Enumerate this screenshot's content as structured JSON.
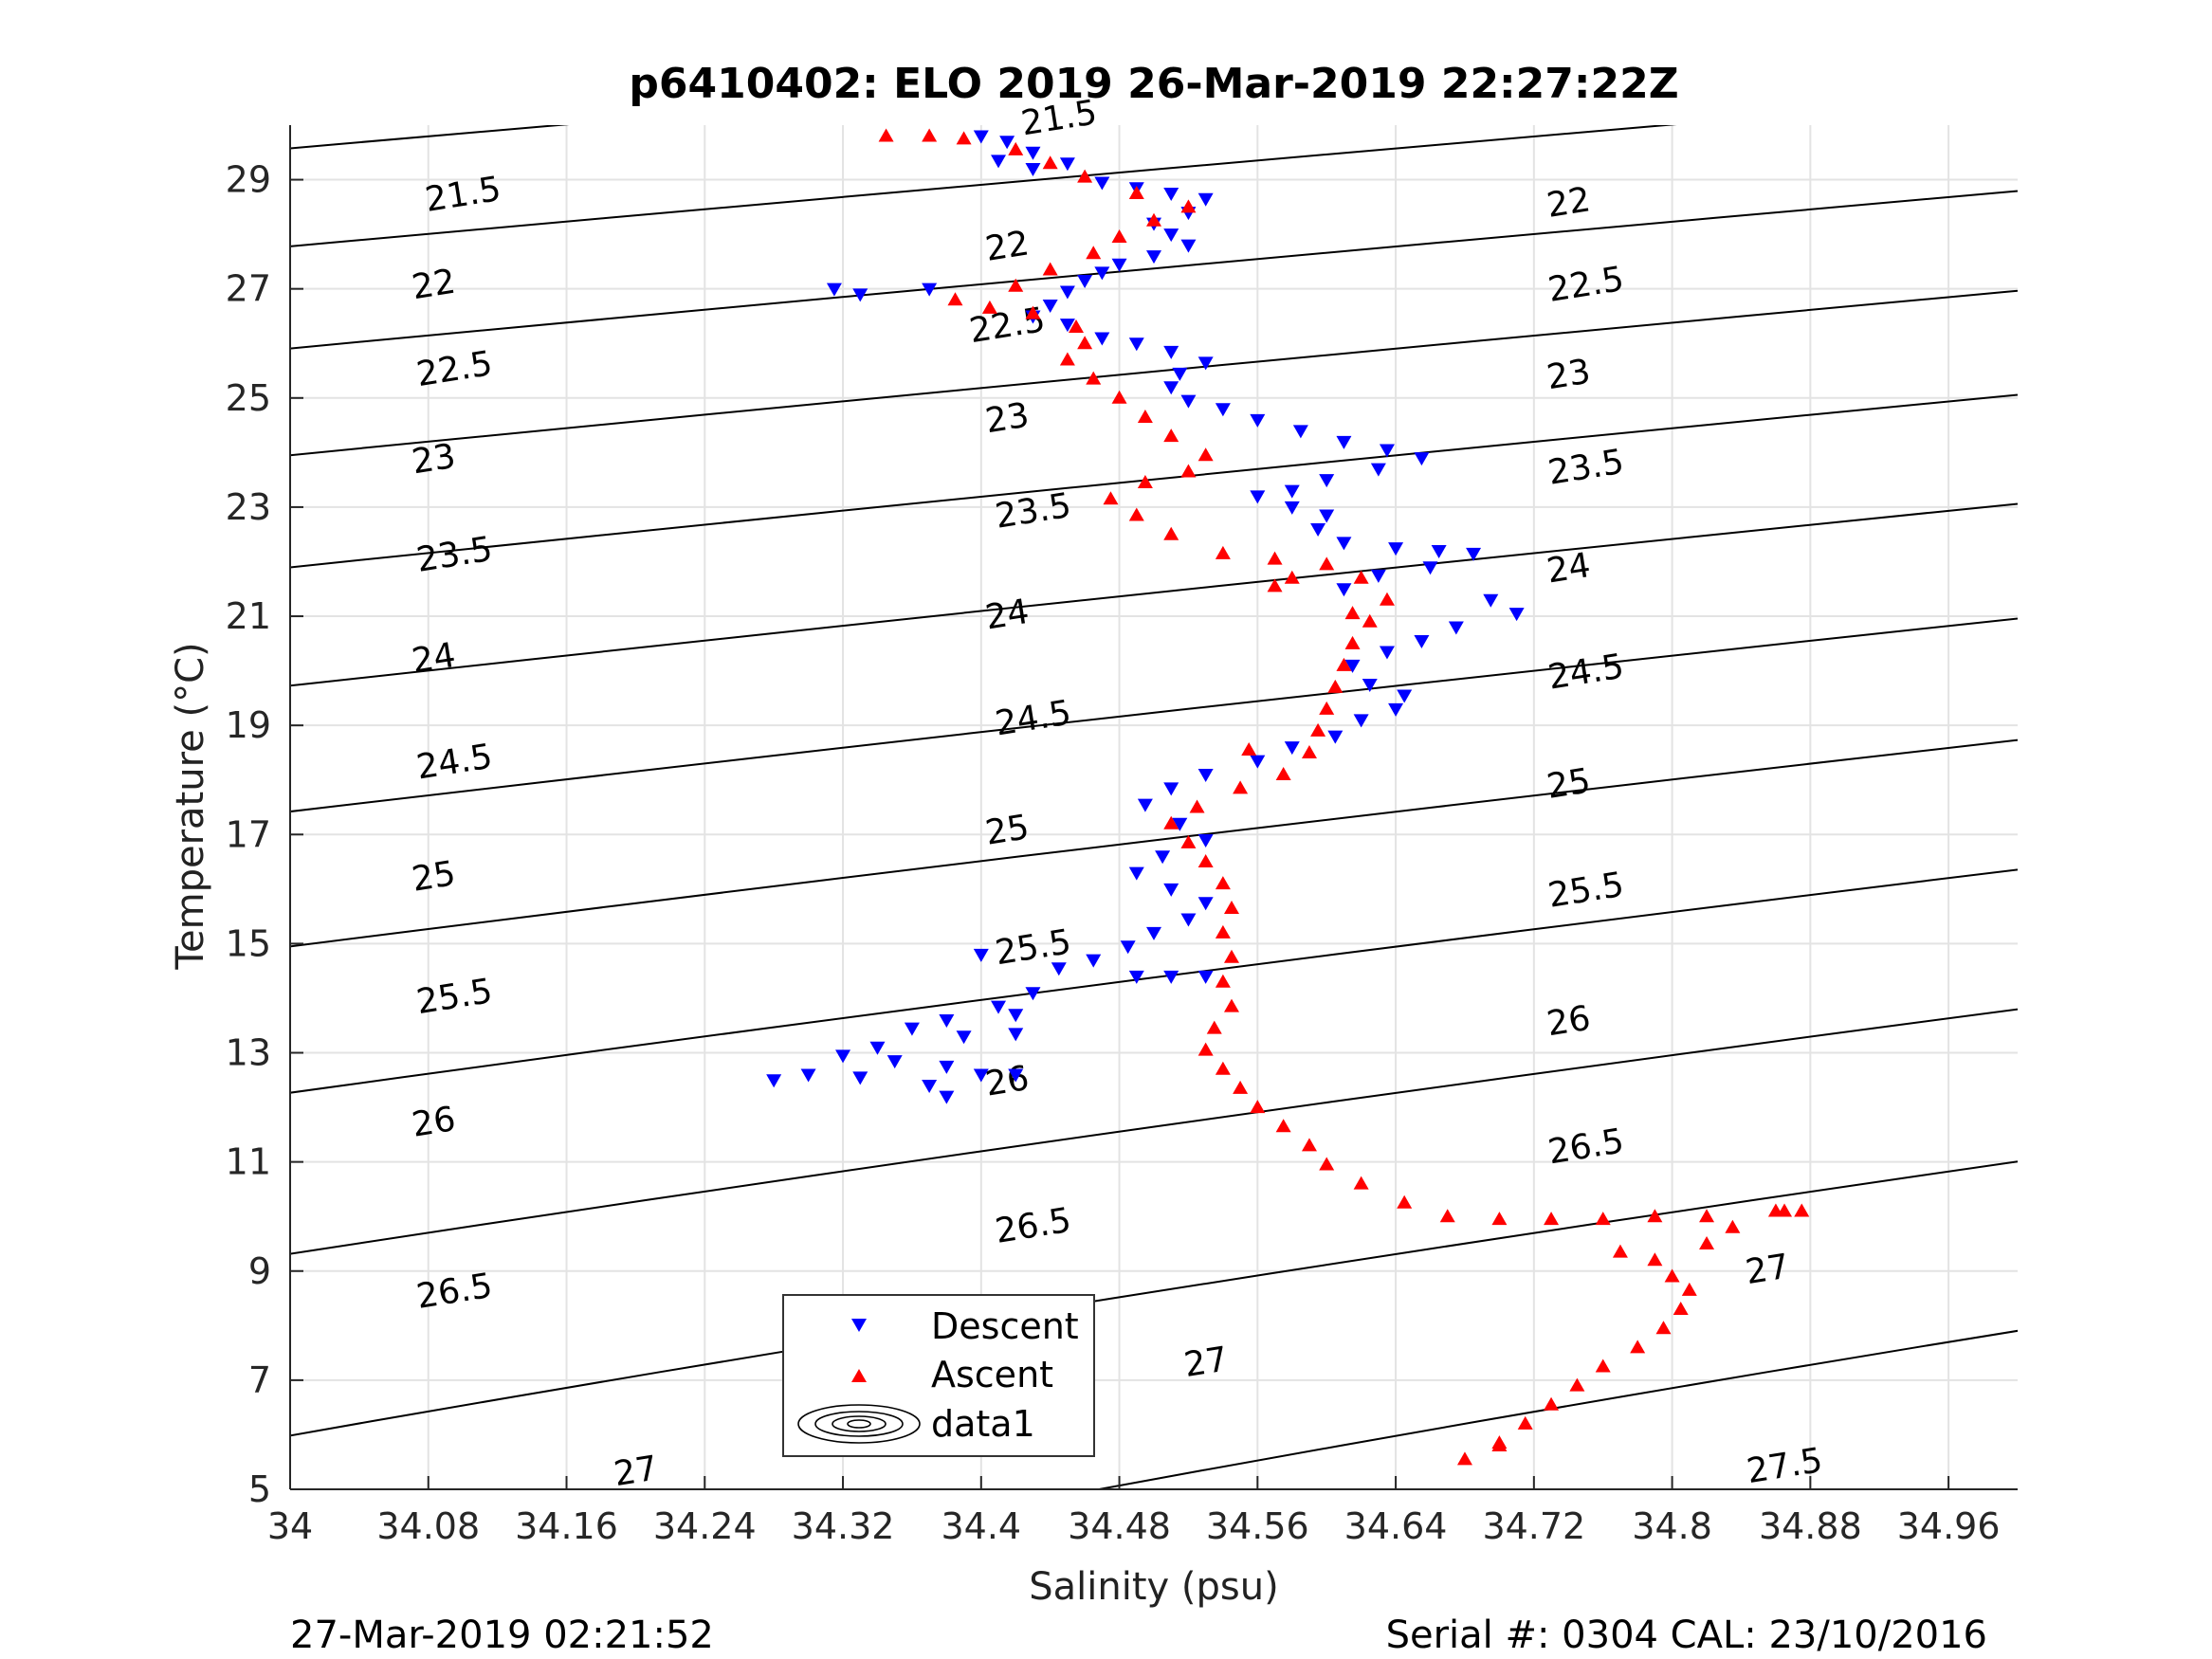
{
  "footer": {
    "timestamp": "27-Mar-2019 02:21:52",
    "serial_cal": "Serial #: 0304  CAL: 23/10/2016"
  },
  "chart_data": {
    "type": "scatter",
    "title": "p6410402: ELO 2019 26-Mar-2019 22:27:22Z",
    "xlabel": "Salinity (psu)",
    "ylabel": "Temperature (°C)",
    "xlim": [
      34.0,
      35.0
    ],
    "ylim": [
      5,
      30
    ],
    "xticks": [
      "34",
      "34.08",
      "34.16",
      "34.24",
      "34.32",
      "34.4",
      "34.48",
      "34.56",
      "34.64",
      "34.72",
      "34.8",
      "34.88",
      "34.96"
    ],
    "yticks": [
      "5",
      "7",
      "9",
      "11",
      "13",
      "15",
      "17",
      "19",
      "21",
      "23",
      "25",
      "27",
      "29"
    ],
    "grid": true,
    "legend": {
      "placement": "bottom-center",
      "entries": [
        "Descent",
        "Ascent",
        "data1"
      ]
    },
    "colors": {
      "descent": "#0000ff",
      "ascent": "#ff0000",
      "contour": "#000000"
    },
    "density_contours": {
      "levels": [
        21.5,
        22,
        22.5,
        23,
        23.5,
        24,
        24.5,
        25,
        25.5,
        26,
        26.5,
        27,
        27.5
      ],
      "labels": [
        {
          "text": "21.5",
          "x": 34.1,
          "y": 28.75
        },
        {
          "text": "21.5",
          "x": 34.445,
          "y": 30.15
        },
        {
          "text": "22",
          "x": 34.083,
          "y": 27.1
        },
        {
          "text": "22",
          "x": 34.415,
          "y": 27.8
        },
        {
          "text": "22",
          "x": 34.74,
          "y": 28.6
        },
        {
          "text": "22.5",
          "x": 34.095,
          "y": 25.55
        },
        {
          "text": "22.5",
          "x": 34.415,
          "y": 26.35
        },
        {
          "text": "22.5",
          "x": 34.75,
          "y": 27.1
        },
        {
          "text": "23",
          "x": 34.083,
          "y": 23.9
        },
        {
          "text": "23",
          "x": 34.415,
          "y": 24.65
        },
        {
          "text": "23",
          "x": 34.74,
          "y": 25.45
        },
        {
          "text": "23.5",
          "x": 34.095,
          "y": 22.15
        },
        {
          "text": "23.5",
          "x": 34.43,
          "y": 22.95
        },
        {
          "text": "23.5",
          "x": 34.75,
          "y": 23.75
        },
        {
          "text": "24",
          "x": 34.083,
          "y": 20.25
        },
        {
          "text": "24",
          "x": 34.415,
          "y": 21.05
        },
        {
          "text": "24",
          "x": 34.74,
          "y": 21.9
        },
        {
          "text": "24.5",
          "x": 34.095,
          "y": 18.35
        },
        {
          "text": "24.5",
          "x": 34.43,
          "y": 19.15
        },
        {
          "text": "24.5",
          "x": 34.75,
          "y": 20.0
        },
        {
          "text": "25",
          "x": 34.083,
          "y": 16.25
        },
        {
          "text": "25",
          "x": 34.415,
          "y": 17.1
        },
        {
          "text": "25",
          "x": 34.74,
          "y": 17.95
        },
        {
          "text": "25.5",
          "x": 34.095,
          "y": 14.05
        },
        {
          "text": "25.5",
          "x": 34.43,
          "y": 14.95
        },
        {
          "text": "25.5",
          "x": 34.75,
          "y": 16.0
        },
        {
          "text": "26",
          "x": 34.083,
          "y": 11.75
        },
        {
          "text": "26",
          "x": 34.415,
          "y": 12.5
        },
        {
          "text": "26",
          "x": 34.74,
          "y": 13.6
        },
        {
          "text": "26.5",
          "x": 34.095,
          "y": 8.65
        },
        {
          "text": "26.5",
          "x": 34.43,
          "y": 9.85
        },
        {
          "text": "26.5",
          "x": 34.75,
          "y": 11.3
        },
        {
          "text": "27",
          "x": 34.2,
          "y": 5.35
        },
        {
          "text": "27",
          "x": 34.53,
          "y": 7.35
        },
        {
          "text": "27",
          "x": 34.855,
          "y": 9.05
        },
        {
          "text": "27.5",
          "x": 34.865,
          "y": 5.45
        }
      ]
    },
    "series": [
      {
        "name": "Descent",
        "marker": "triangle-down",
        "points": [
          [
            34.4,
            29.8
          ],
          [
            34.415,
            29.7
          ],
          [
            34.43,
            29.5
          ],
          [
            34.41,
            29.35
          ],
          [
            34.43,
            29.2
          ],
          [
            34.45,
            29.3
          ],
          [
            34.47,
            28.95
          ],
          [
            34.49,
            28.85
          ],
          [
            34.51,
            28.75
          ],
          [
            34.53,
            28.65
          ],
          [
            34.52,
            28.4
          ],
          [
            34.5,
            28.2
          ],
          [
            34.51,
            28.0
          ],
          [
            34.52,
            27.8
          ],
          [
            34.5,
            27.6
          ],
          [
            34.48,
            27.45
          ],
          [
            34.47,
            27.3
          ],
          [
            34.46,
            27.15
          ],
          [
            34.45,
            26.95
          ],
          [
            34.44,
            26.7
          ],
          [
            34.43,
            26.5
          ],
          [
            34.45,
            26.35
          ],
          [
            34.47,
            26.1
          ],
          [
            34.49,
            26.0
          ],
          [
            34.51,
            25.85
          ],
          [
            34.53,
            25.65
          ],
          [
            34.515,
            25.45
          ],
          [
            34.51,
            25.2
          ],
          [
            34.52,
            24.95
          ],
          [
            34.54,
            24.8
          ],
          [
            34.56,
            24.6
          ],
          [
            34.585,
            24.4
          ],
          [
            34.61,
            24.2
          ],
          [
            34.635,
            24.05
          ],
          [
            34.655,
            23.9
          ],
          [
            34.63,
            23.7
          ],
          [
            34.6,
            23.5
          ],
          [
            34.58,
            23.3
          ],
          [
            34.56,
            23.2
          ],
          [
            34.58,
            23.0
          ],
          [
            34.6,
            22.85
          ],
          [
            34.595,
            22.6
          ],
          [
            34.61,
            22.35
          ],
          [
            34.64,
            22.25
          ],
          [
            34.665,
            22.2
          ],
          [
            34.685,
            22.15
          ],
          [
            34.66,
            21.9
          ],
          [
            34.63,
            21.75
          ],
          [
            34.61,
            21.5
          ],
          [
            34.695,
            21.3
          ],
          [
            34.71,
            21.05
          ],
          [
            34.675,
            20.8
          ],
          [
            34.655,
            20.55
          ],
          [
            34.635,
            20.35
          ],
          [
            34.615,
            20.1
          ],
          [
            34.625,
            19.75
          ],
          [
            34.645,
            19.55
          ],
          [
            34.64,
            19.3
          ],
          [
            34.62,
            19.1
          ],
          [
            34.605,
            18.8
          ],
          [
            34.58,
            18.6
          ],
          [
            34.56,
            18.35
          ],
          [
            34.53,
            18.1
          ],
          [
            34.51,
            17.85
          ],
          [
            34.495,
            17.55
          ],
          [
            34.515,
            17.2
          ],
          [
            34.53,
            16.9
          ],
          [
            34.505,
            16.6
          ],
          [
            34.49,
            16.3
          ],
          [
            34.51,
            16.0
          ],
          [
            34.53,
            15.75
          ],
          [
            34.52,
            15.45
          ],
          [
            34.5,
            15.2
          ],
          [
            34.485,
            14.95
          ],
          [
            34.465,
            14.7
          ],
          [
            34.445,
            14.55
          ],
          [
            34.49,
            14.4
          ],
          [
            34.51,
            14.4
          ],
          [
            34.53,
            14.4
          ],
          [
            34.43,
            14.1
          ],
          [
            34.41,
            13.85
          ],
          [
            34.38,
            13.6
          ],
          [
            34.36,
            13.45
          ],
          [
            34.39,
            13.3
          ],
          [
            34.42,
            13.35
          ],
          [
            34.34,
            13.1
          ],
          [
            34.32,
            12.95
          ],
          [
            34.35,
            12.85
          ],
          [
            34.38,
            12.75
          ],
          [
            34.4,
            12.6
          ],
          [
            34.42,
            12.6
          ],
          [
            34.3,
            12.6
          ],
          [
            34.28,
            12.5
          ],
          [
            34.33,
            12.55
          ],
          [
            34.37,
            12.4
          ],
          [
            34.38,
            12.2
          ],
          [
            34.315,
            27.0
          ],
          [
            34.33,
            26.9
          ],
          [
            34.37,
            27.0
          ],
          [
            34.4,
            14.8
          ],
          [
            34.42,
            13.7
          ]
        ]
      },
      {
        "name": "Ascent",
        "marker": "triangle-up",
        "points": [
          [
            34.68,
            5.55
          ],
          [
            34.7,
            5.85
          ],
          [
            34.715,
            6.2
          ],
          [
            34.73,
            6.55
          ],
          [
            34.745,
            6.9
          ],
          [
            34.76,
            7.25
          ],
          [
            34.78,
            7.6
          ],
          [
            34.795,
            7.95
          ],
          [
            34.805,
            8.3
          ],
          [
            34.81,
            8.65
          ],
          [
            34.8,
            8.9
          ],
          [
            34.79,
            9.2
          ],
          [
            34.82,
            9.5
          ],
          [
            34.835,
            9.8
          ],
          [
            34.82,
            10.0
          ],
          [
            34.79,
            10.0
          ],
          [
            34.76,
            9.95
          ],
          [
            34.73,
            9.95
          ],
          [
            34.7,
            9.95
          ],
          [
            34.67,
            10.0
          ],
          [
            34.645,
            10.25
          ],
          [
            34.62,
            10.6
          ],
          [
            34.6,
            10.95
          ],
          [
            34.59,
            11.3
          ],
          [
            34.575,
            11.65
          ],
          [
            34.56,
            12.0
          ],
          [
            34.55,
            12.35
          ],
          [
            34.54,
            12.7
          ],
          [
            34.53,
            13.05
          ],
          [
            34.535,
            13.45
          ],
          [
            34.545,
            13.85
          ],
          [
            34.54,
            14.3
          ],
          [
            34.545,
            14.75
          ],
          [
            34.54,
            15.2
          ],
          [
            34.545,
            15.65
          ],
          [
            34.54,
            16.1
          ],
          [
            34.53,
            16.5
          ],
          [
            34.52,
            16.85
          ],
          [
            34.51,
            17.2
          ],
          [
            34.525,
            17.5
          ],
          [
            34.55,
            17.85
          ],
          [
            34.575,
            18.1
          ],
          [
            34.59,
            18.5
          ],
          [
            34.595,
            18.9
          ],
          [
            34.6,
            19.3
          ],
          [
            34.605,
            19.7
          ],
          [
            34.61,
            20.1
          ],
          [
            34.615,
            20.5
          ],
          [
            34.625,
            20.9
          ],
          [
            34.635,
            21.3
          ],
          [
            34.62,
            21.7
          ],
          [
            34.6,
            21.95
          ],
          [
            34.57,
            22.05
          ],
          [
            34.54,
            22.15
          ],
          [
            34.51,
            22.5
          ],
          [
            34.49,
            22.85
          ],
          [
            34.475,
            23.15
          ],
          [
            34.495,
            23.45
          ],
          [
            34.52,
            23.65
          ],
          [
            34.53,
            23.95
          ],
          [
            34.51,
            24.3
          ],
          [
            34.495,
            24.65
          ],
          [
            34.48,
            25.0
          ],
          [
            34.465,
            25.35
          ],
          [
            34.45,
            25.7
          ],
          [
            34.46,
            26.0
          ],
          [
            34.455,
            26.3
          ],
          [
            34.43,
            26.55
          ],
          [
            34.405,
            26.65
          ],
          [
            34.385,
            26.8
          ],
          [
            34.42,
            27.05
          ],
          [
            34.44,
            27.35
          ],
          [
            34.465,
            27.65
          ],
          [
            34.48,
            27.95
          ],
          [
            34.5,
            28.25
          ],
          [
            34.52,
            28.5
          ],
          [
            34.49,
            28.75
          ],
          [
            34.46,
            29.05
          ],
          [
            34.44,
            29.3
          ],
          [
            34.42,
            29.55
          ],
          [
            34.39,
            29.75
          ],
          [
            34.37,
            29.8
          ],
          [
            34.345,
            29.8
          ],
          [
            34.7,
            5.8
          ],
          [
            34.86,
            10.1
          ],
          [
            34.875,
            10.1
          ],
          [
            34.865,
            10.1
          ],
          [
            34.77,
            9.35
          ],
          [
            34.57,
            21.55
          ],
          [
            34.58,
            21.7
          ],
          [
            34.555,
            18.55
          ],
          [
            34.615,
            21.05
          ]
        ]
      }
    ]
  }
}
